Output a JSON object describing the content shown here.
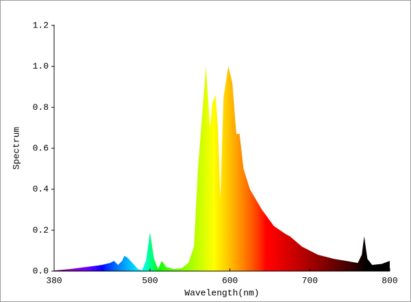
{
  "chart_data": {
    "type": "area",
    "x_label": "Wavelength(nm)",
    "y_label": "Spectrum",
    "x": [
      380,
      400,
      420,
      440,
      445,
      450,
      455,
      460,
      465,
      468,
      472,
      478,
      485,
      490,
      495,
      500,
      505,
      510,
      515,
      520,
      530,
      540,
      548,
      555,
      560,
      565,
      570,
      575,
      578,
      582,
      585,
      588,
      592,
      598,
      603,
      608,
      612,
      617,
      625,
      640,
      655,
      670,
      675,
      690,
      710,
      730,
      760,
      765,
      768,
      772,
      778,
      790,
      800
    ],
    "values": [
      0.003,
      0.01,
      0.02,
      0.03,
      0.035,
      0.04,
      0.05,
      0.03,
      0.05,
      0.075,
      0.065,
      0.04,
      0.01,
      0.005,
      0.05,
      0.19,
      0.06,
      0.01,
      0.05,
      0.02,
      0.01,
      0.015,
      0.04,
      0.12,
      0.5,
      0.75,
      1.0,
      0.7,
      0.82,
      0.86,
      0.7,
      0.35,
      0.85,
      1.0,
      0.92,
      0.67,
      0.67,
      0.5,
      0.4,
      0.3,
      0.22,
      0.18,
      0.17,
      0.12,
      0.08,
      0.06,
      0.04,
      0.08,
      0.17,
      0.06,
      0.03,
      0.035,
      0.05
    ],
    "xlim": [
      380,
      800
    ],
    "xticks": [
      380,
      500,
      600,
      700,
      800
    ],
    "ylim": [
      0,
      1.2
    ],
    "yticks": [
      {
        "value": 0,
        "label": "0.0"
      },
      0.2,
      0.4,
      0.6,
      0.8,
      {
        "value": 1,
        "label": "1.0"
      },
      1.2
    ]
  }
}
